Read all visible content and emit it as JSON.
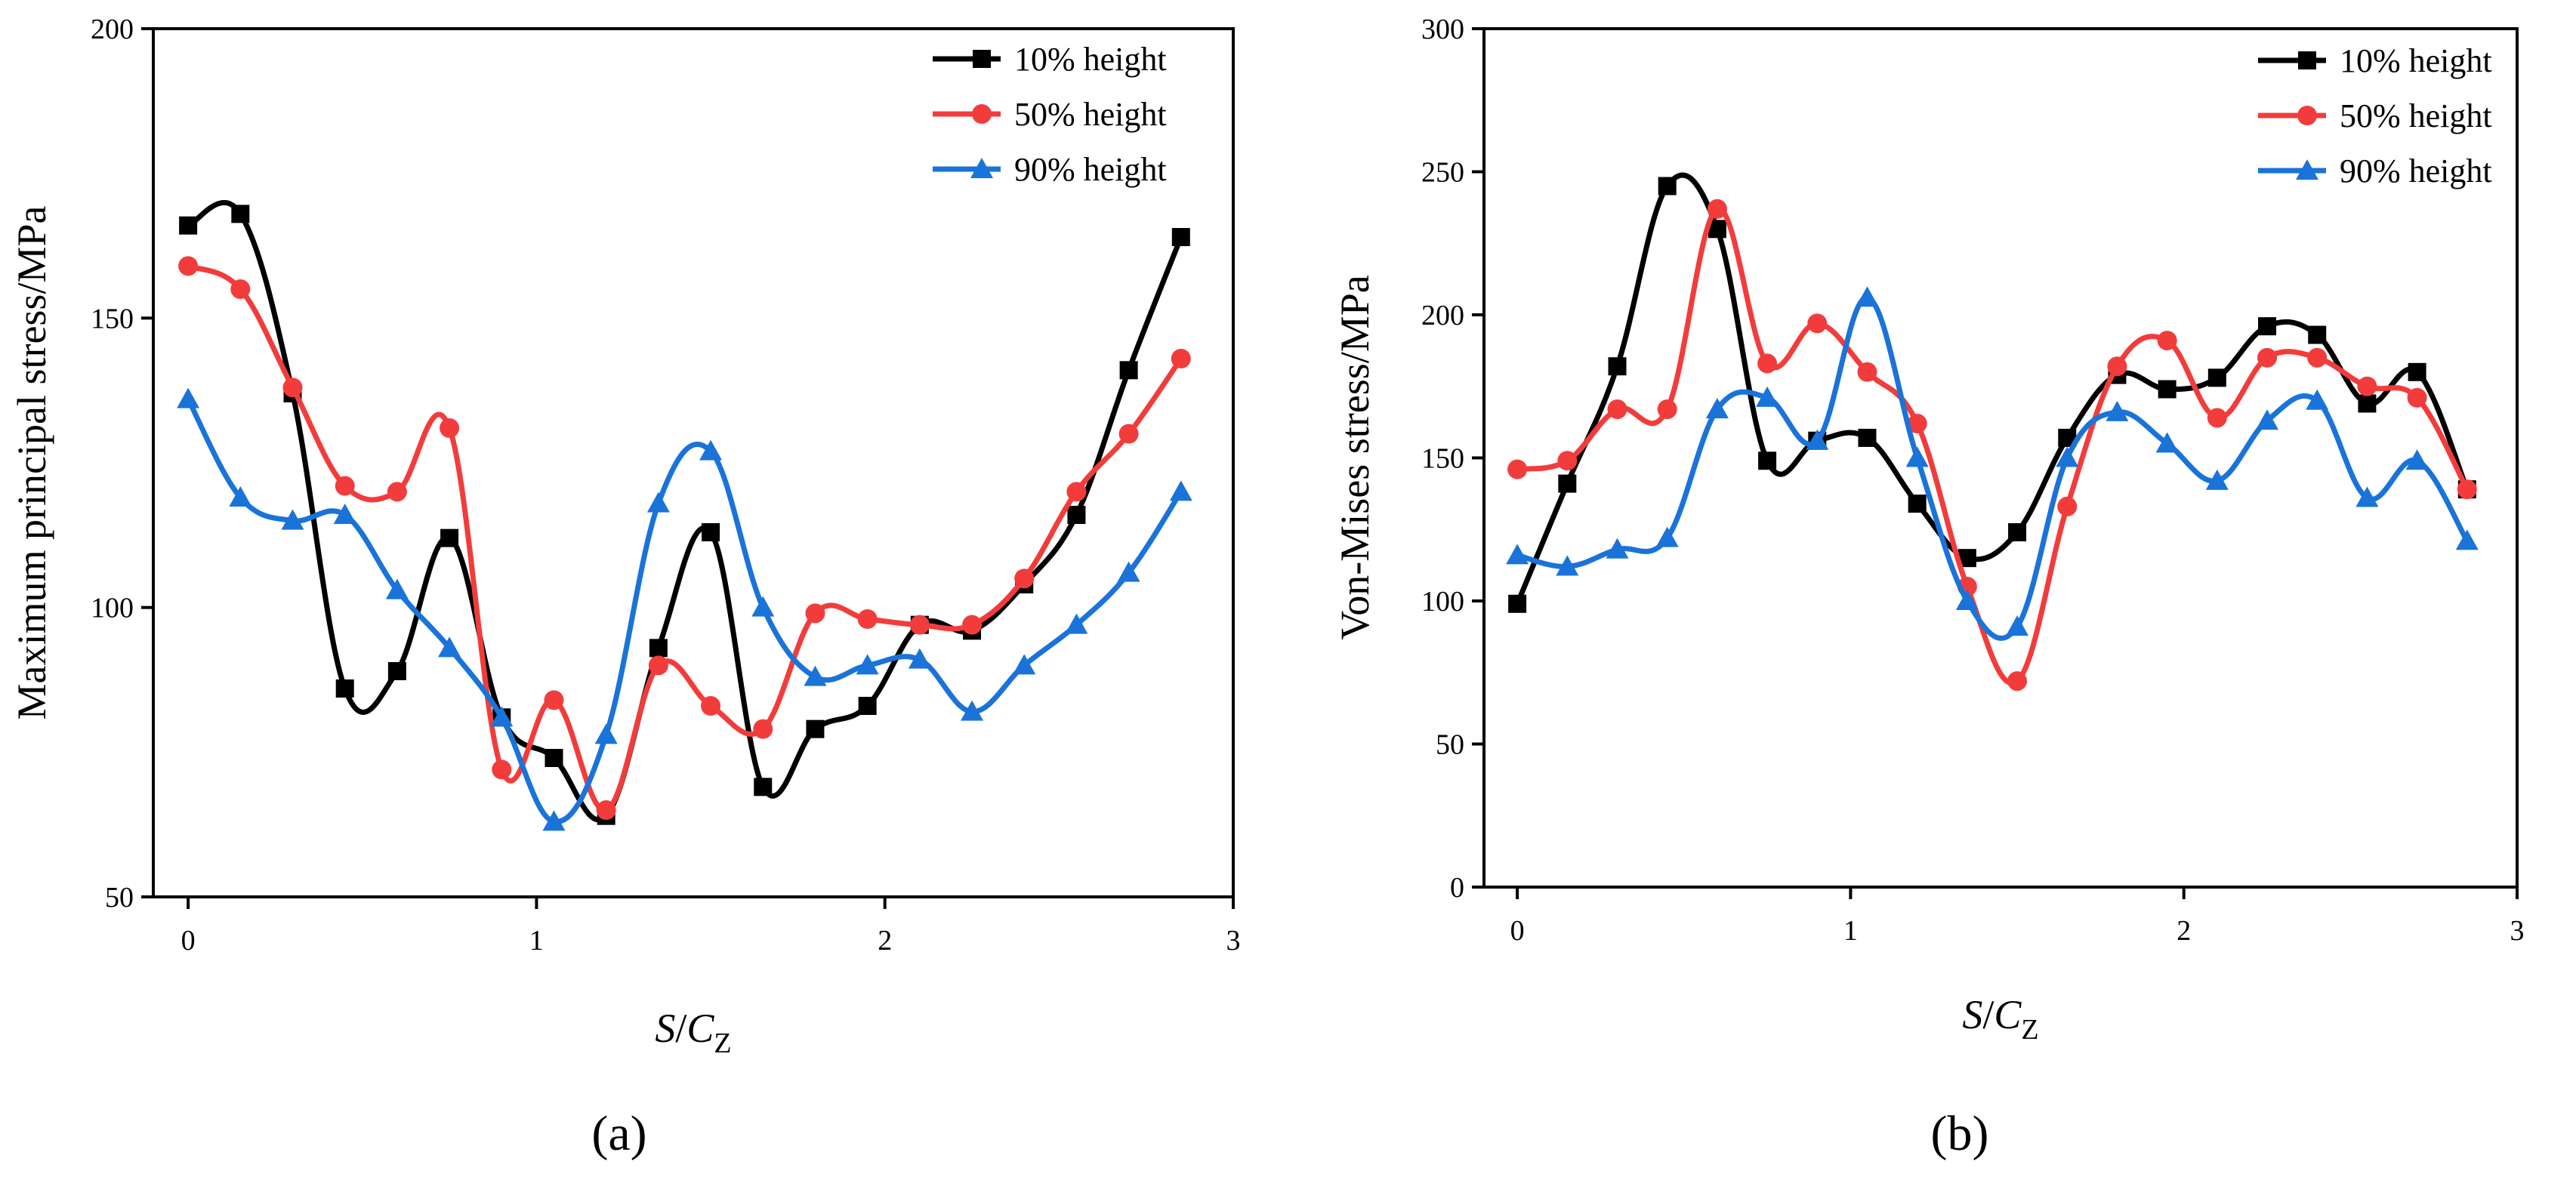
{
  "figure": {
    "panels": [
      "(a)",
      "(b)"
    ]
  },
  "colors": {
    "10% height": "#000000",
    "50% height": "#f23c3c",
    "90% height": "#1a73d9"
  },
  "chart_data": [
    {
      "type": "line",
      "panel_label": "(a)",
      "title": "",
      "xlabel_parts": [
        "S",
        "/",
        "C",
        "Z"
      ],
      "ylabel": "Maximum principal stress/MPa",
      "xlim": [
        -0.1,
        3.0
      ],
      "ylim": [
        50,
        200
      ],
      "xticks": [
        0,
        1,
        2,
        3
      ],
      "yticks": [
        50,
        100,
        150,
        200
      ],
      "legend_position": "top-right",
      "grid": false,
      "x": [
        0,
        0.15,
        0.3,
        0.45,
        0.6,
        0.75,
        0.9,
        1.05,
        1.2,
        1.35,
        1.5,
        1.65,
        1.8,
        1.95,
        2.1,
        2.25,
        2.4,
        2.55,
        2.7,
        2.85
      ],
      "series": [
        {
          "name": "10% height",
          "marker": "square",
          "color": "#000000",
          "values": [
            166,
            168,
            137,
            86,
            89,
            112,
            81,
            74,
            64,
            93,
            113,
            69,
            79,
            83,
            97,
            96,
            104,
            116,
            141,
            164
          ]
        },
        {
          "name": "50% height",
          "marker": "circle",
          "color": "#f23c3c",
          "values": [
            159,
            155,
            138,
            121,
            120,
            131,
            72,
            84,
            65,
            90,
            83,
            79,
            99,
            98,
            97,
            97,
            105,
            120,
            130,
            143
          ]
        },
        {
          "name": "90% height",
          "marker": "triangle",
          "color": "#1a73d9",
          "values": [
            136,
            119,
            115,
            116,
            103,
            93,
            81,
            63,
            78,
            118,
            127,
            100,
            88,
            90,
            91,
            82,
            90,
            97,
            106,
            120
          ]
        }
      ]
    },
    {
      "type": "line",
      "panel_label": "(b)",
      "title": "",
      "xlabel_parts": [
        "S",
        "/",
        "C",
        "Z"
      ],
      "ylabel": "Von-Mises stress/MPa",
      "xlim": [
        -0.1,
        3.0
      ],
      "ylim": [
        0,
        300
      ],
      "xticks": [
        0,
        1,
        2,
        3
      ],
      "yticks": [
        0,
        50,
        100,
        150,
        200,
        250,
        300
      ],
      "legend_position": "top-right",
      "grid": false,
      "x": [
        0,
        0.15,
        0.3,
        0.45,
        0.6,
        0.75,
        0.9,
        1.05,
        1.2,
        1.35,
        1.5,
        1.65,
        1.8,
        1.95,
        2.1,
        2.25,
        2.4,
        2.55,
        2.7,
        2.85
      ],
      "series": [
        {
          "name": "10% height",
          "marker": "square",
          "color": "#000000",
          "values": [
            99,
            141,
            182,
            245,
            230,
            149,
            156,
            157,
            134,
            115,
            124,
            157,
            179,
            174,
            178,
            196,
            193,
            169,
            180,
            139
          ]
        },
        {
          "name": "50% height",
          "marker": "circle",
          "color": "#f23c3c",
          "values": [
            146,
            149,
            167,
            167,
            237,
            183,
            197,
            180,
            162,
            105,
            72,
            133,
            182,
            191,
            164,
            185,
            185,
            175,
            171,
            139
          ]
        },
        {
          "name": "90% height",
          "marker": "triangle",
          "color": "#1a73d9",
          "values": [
            116,
            112,
            118,
            122,
            167,
            171,
            156,
            206,
            150,
            100,
            91,
            150,
            166,
            155,
            142,
            163,
            170,
            136,
            149,
            121
          ]
        }
      ]
    }
  ]
}
